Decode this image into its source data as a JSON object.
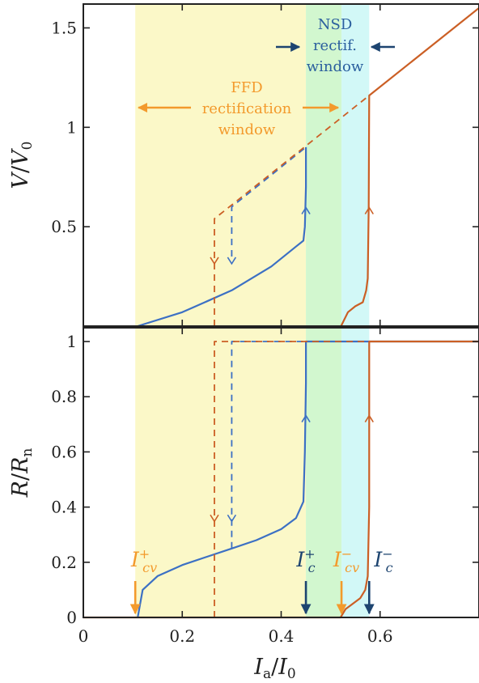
{
  "chart_data": [
    {
      "type": "line",
      "panel": "top",
      "ylabel_main": "V",
      "ylabel_den": "V",
      "ylabel_den_sub": "0",
      "xlim": [
        0,
        0.8
      ],
      "ylim": [
        0,
        1.62
      ],
      "yticks": [
        0.5,
        1,
        1.5
      ],
      "ytick_labels": [
        "0.5",
        "1",
        "1.5"
      ],
      "regions": [
        {
          "name": "yellow",
          "x0": 0.105,
          "x1": 0.45,
          "color": "#fbf8c8"
        },
        {
          "name": "green",
          "x0": 0.45,
          "x1": 0.522,
          "color": "#d2f7cf"
        },
        {
          "name": "cyan",
          "x0": 0.522,
          "x1": 0.578,
          "color": "#d2f8f7"
        }
      ],
      "series": [
        {
          "color": "#3c70c4",
          "style": "solid",
          "x": [
            0.11,
            0.2,
            0.3,
            0.38,
            0.43,
            0.445,
            0.448,
            0.45,
            0.45
          ],
          "y": [
            0.0,
            0.07,
            0.18,
            0.3,
            0.4,
            0.43,
            0.5,
            0.7,
            0.9
          ]
        },
        {
          "color": "#3c70c4",
          "style": "dashed",
          "x": [
            0.3,
            0.3,
            0.45
          ],
          "y": [
            0.35,
            0.6,
            0.9
          ]
        },
        {
          "color": "#cb5f25",
          "style": "solid",
          "x": [
            0.521,
            0.535,
            0.55,
            0.565,
            0.572,
            0.575,
            0.577,
            0.578,
            0.8
          ],
          "y": [
            0.0,
            0.07,
            0.1,
            0.12,
            0.18,
            0.24,
            0.6,
            1.16,
            1.6
          ]
        },
        {
          "color": "#cb5f25",
          "style": "dashed",
          "x": [
            0.265,
            0.265,
            0.578
          ],
          "y": [
            0.0,
            0.54,
            1.16
          ]
        }
      ],
      "annotations": {
        "ffd": [
          "FFD",
          "rectification",
          "window"
        ],
        "nsd": [
          "NSD",
          "rectif.",
          "window"
        ]
      }
    },
    {
      "type": "line",
      "panel": "bottom",
      "xlabel_main": "I",
      "xlabel_main_sub": "a",
      "xlabel_den": "I",
      "xlabel_den_sub": "0",
      "ylabel_main": "R",
      "ylabel_den": "R",
      "ylabel_den_sub": "n",
      "xlim": [
        0,
        0.8
      ],
      "ylim": [
        0,
        1.05
      ],
      "xticks": [
        0,
        0.2,
        0.4,
        0.6
      ],
      "xtick_labels": [
        "0",
        "0.2",
        "0.4",
        "0.6"
      ],
      "yticks": [
        0,
        0.2,
        0.4,
        0.6,
        0.8,
        1
      ],
      "ytick_labels": [
        "0",
        "0.2",
        "0.4",
        "0.6",
        "0.8",
        "1"
      ],
      "series": [
        {
          "color": "#3c70c4",
          "style": "solid",
          "x": [
            0.11,
            0.12,
            0.15,
            0.2,
            0.25,
            0.3,
            0.35,
            0.4,
            0.43,
            0.445,
            0.448,
            0.45,
            0.45,
            0.8
          ],
          "y": [
            0.0,
            0.1,
            0.15,
            0.19,
            0.22,
            0.25,
            0.28,
            0.32,
            0.36,
            0.42,
            0.6,
            0.85,
            1.0,
            1.0
          ]
        },
        {
          "color": "#3c70c4",
          "style": "dashed",
          "x": [
            0.3,
            0.3,
            0.45
          ],
          "y": [
            0.25,
            1.0,
            1.0
          ]
        },
        {
          "color": "#cb5f25",
          "style": "solid",
          "x": [
            0.0,
            0.52,
            0.53,
            0.545,
            0.56,
            0.57,
            0.575,
            0.578,
            0.578,
            0.8
          ],
          "y": [
            0.0,
            0.0,
            0.03,
            0.05,
            0.07,
            0.1,
            0.15,
            0.4,
            1.0,
            1.0
          ]
        },
        {
          "color": "#cb5f25",
          "style": "dashed",
          "x": [
            0.265,
            0.265,
            0.578
          ],
          "y": [
            0.0,
            1.0,
            1.0
          ]
        }
      ],
      "markers": [
        {
          "base": "I",
          "sub": "cv",
          "sup": "+",
          "x": 0.105,
          "color": "#f39a2c"
        },
        {
          "base": "I",
          "sub": "c",
          "sup": "+",
          "x": 0.45,
          "color": "#1d4470"
        },
        {
          "base": "I",
          "sub": "cv",
          "sup": "−",
          "x": 0.522,
          "color": "#f39a2c"
        },
        {
          "base": "I",
          "sub": "c",
          "sup": "−",
          "x": 0.578,
          "color": "#1d4470"
        }
      ]
    }
  ]
}
